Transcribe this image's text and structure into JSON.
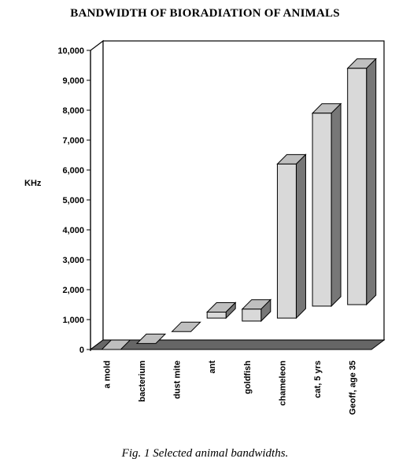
{
  "chart_data": {
    "type": "bar",
    "title": "BANDWIDTH OF BIORADIATION OF ANIMALS",
    "ylabel": "KHz",
    "xlabel": "",
    "categories": [
      "a mold",
      "bacterium",
      "dust mite",
      "ant",
      "goldfish",
      "chameleon",
      "cat, 5 yrs",
      "Geoff, age 35"
    ],
    "series": [
      {
        "low": [
          0,
          200,
          600,
          1050,
          950,
          1050,
          1450,
          1500
        ],
        "high": [
          0,
          200,
          600,
          1250,
          1350,
          6200,
          7900,
          9400
        ]
      }
    ],
    "ylim": [
      0,
      10000
    ],
    "yticks": [
      "0",
      "1,000",
      "2,000",
      "3,000",
      "4,000",
      "5,000",
      "6,000",
      "7,000",
      "8,000",
      "9,000",
      "10,000"
    ],
    "grid": false,
    "legend": "none",
    "colors": {
      "bar_front": "#d9d9d9",
      "bar_top": "#bfbfbf",
      "bar_side": "#777777",
      "floor": "#666666",
      "wall": "#ffffff"
    }
  },
  "caption": "Fig. 1 Selected animal bandwidths."
}
